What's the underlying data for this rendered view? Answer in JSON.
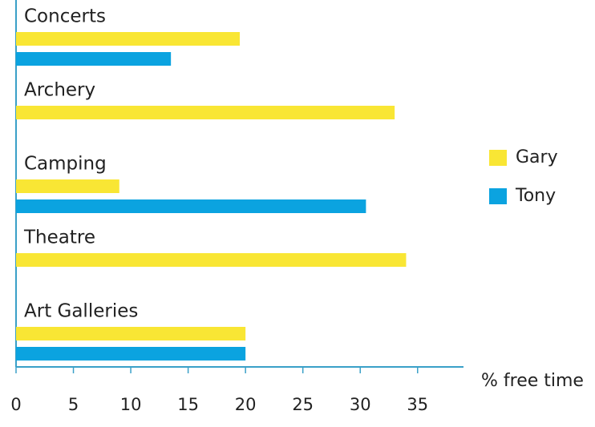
{
  "chart_data": {
    "type": "bar",
    "orientation": "horizontal",
    "categories": [
      "Concerts",
      "Archery",
      "Camping",
      "Theatre",
      "Art Galleries"
    ],
    "series": [
      {
        "name": "Gary",
        "color": "#f9e634",
        "values": [
          19.5,
          33,
          9,
          34,
          20
        ]
      },
      {
        "name": "Tony",
        "color": "#0ba3e0",
        "values": [
          13.5,
          0,
          30.5,
          0,
          20
        ]
      }
    ],
    "x_label": "% free time",
    "xlim": [
      0,
      39
    ],
    "xticks": [
      0,
      5,
      10,
      15,
      20,
      25,
      30,
      35
    ],
    "axis_color": "#3aa0c8",
    "legend": "right"
  }
}
